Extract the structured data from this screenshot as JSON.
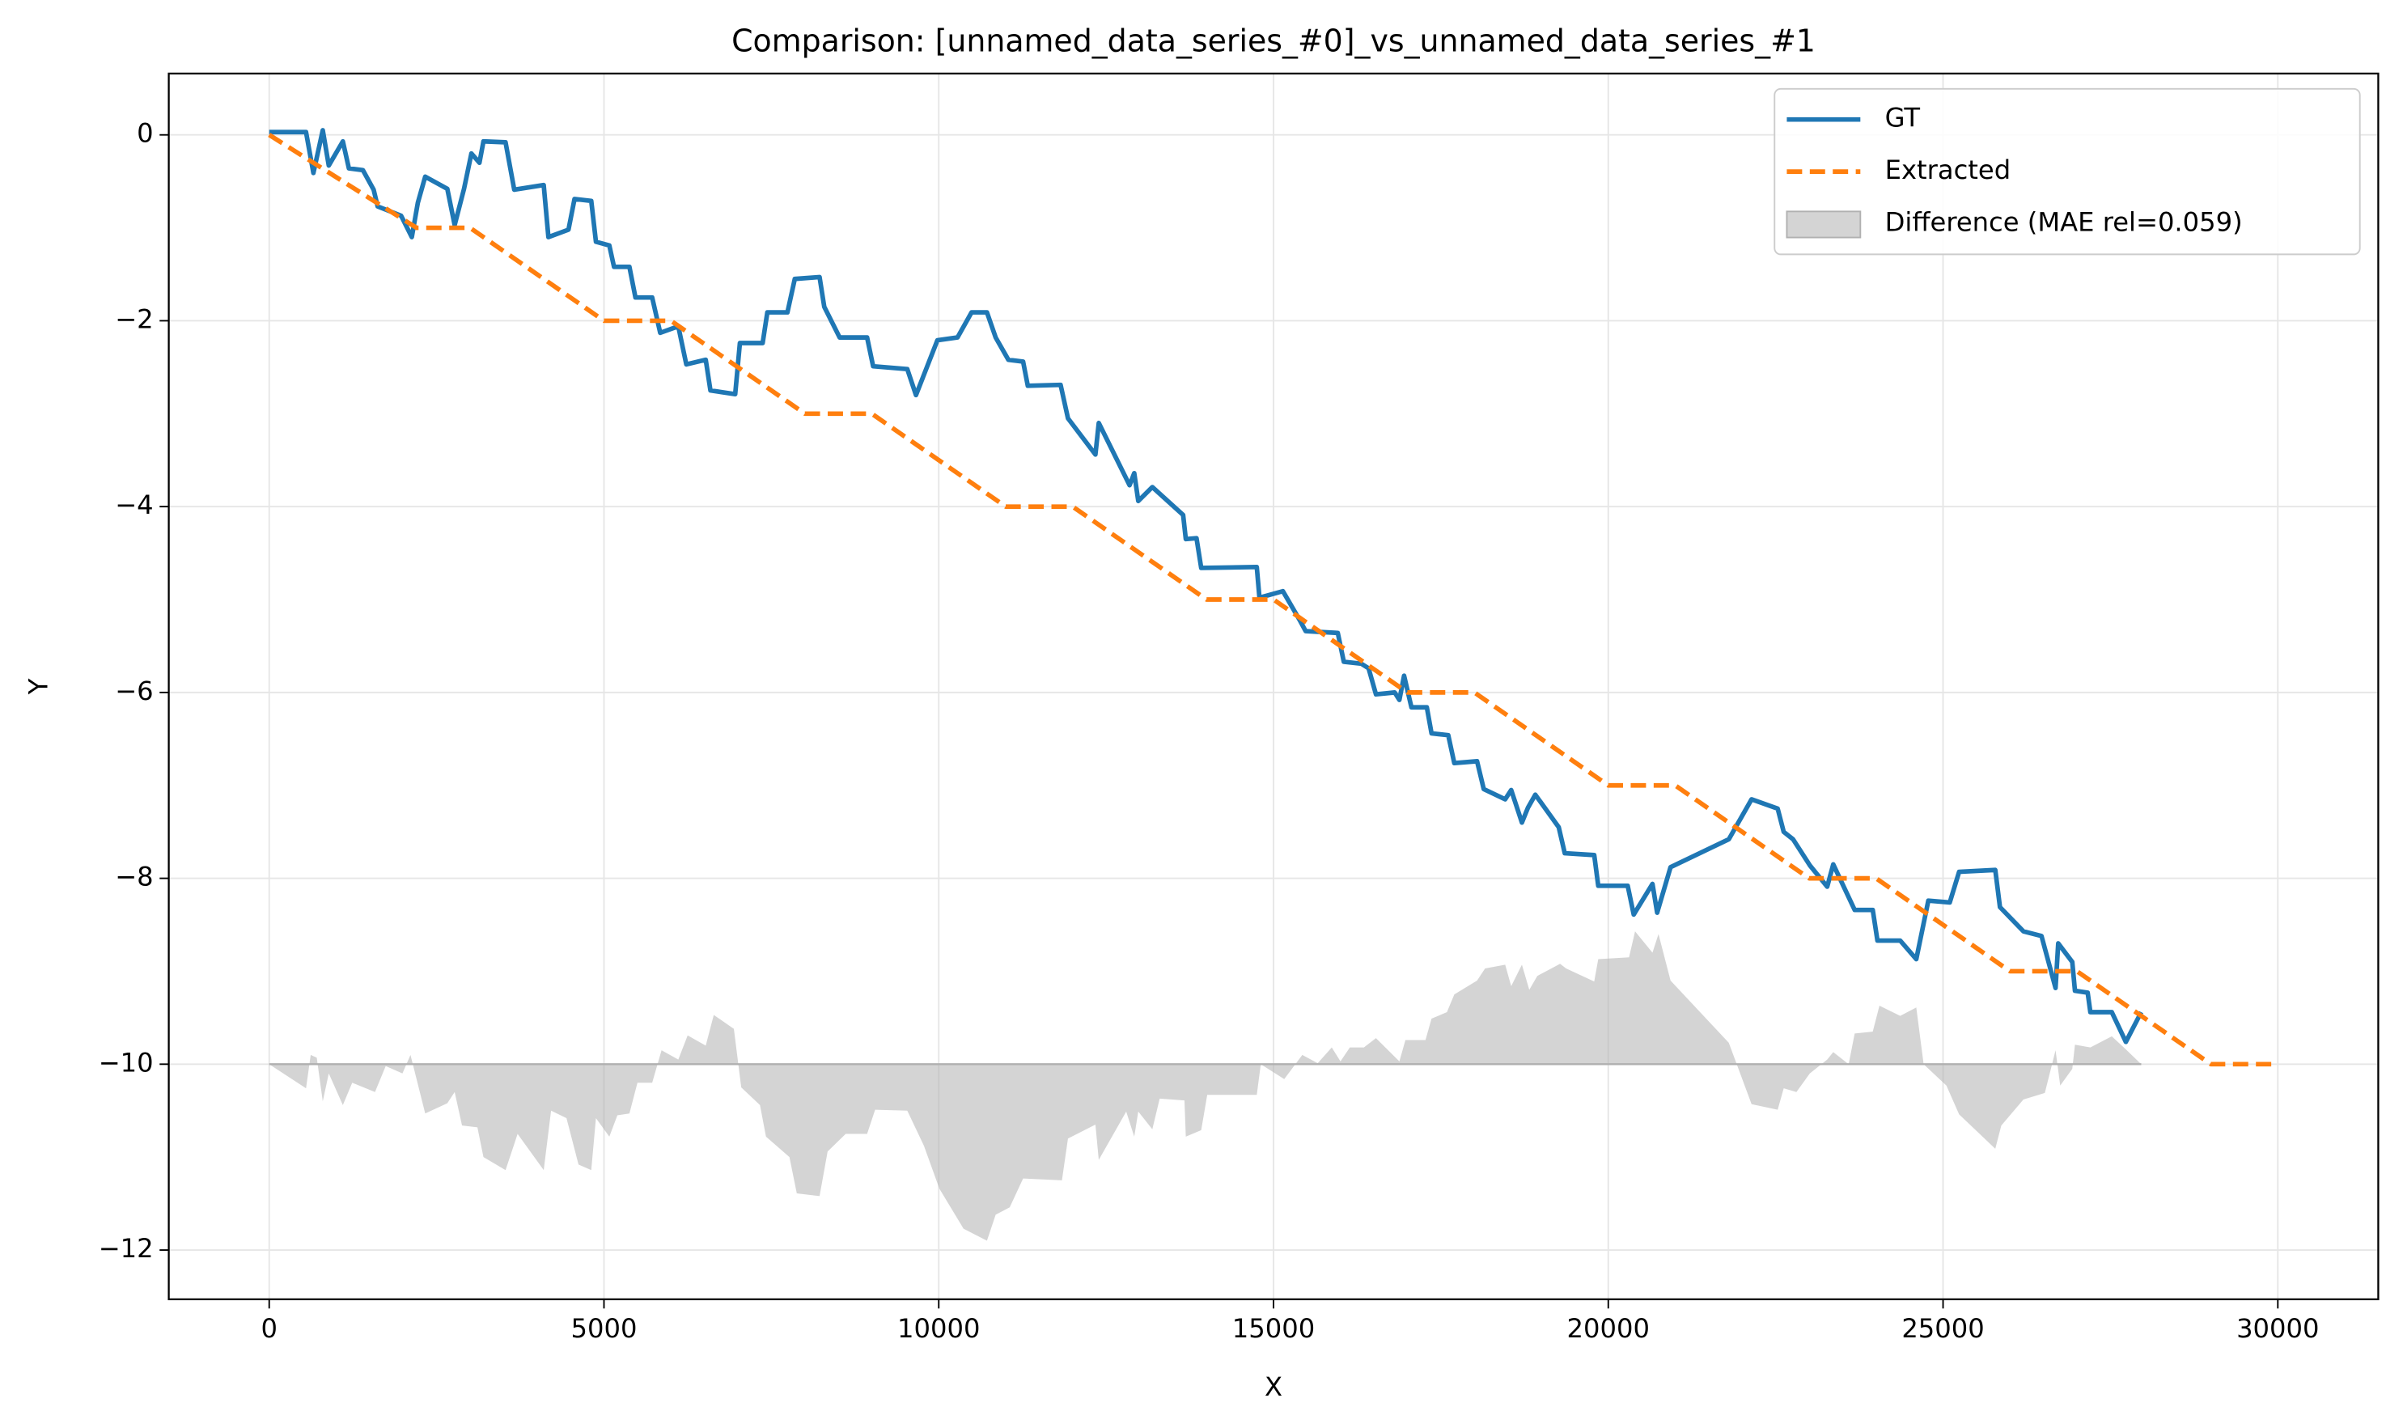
{
  "chart_data": {
    "type": "line",
    "title": "Comparison: [unnamed_data_series_#0]_vs_unnamed_data_series_#1",
    "x_label": "X",
    "y_label": "Y",
    "xlim": [
      -1500,
      31500
    ],
    "ylim": [
      -12.53,
      0.66
    ],
    "xticks": [
      0,
      5000,
      10000,
      15000,
      20000,
      25000,
      30000
    ],
    "yticks": [
      {
        "value": 0,
        "label": "0"
      },
      {
        "value": -2,
        "label": "−2"
      },
      {
        "value": -4,
        "label": "−4"
      },
      {
        "value": -6,
        "label": "−6"
      },
      {
        "value": -8,
        "label": "−8"
      },
      {
        "value": -10,
        "label": "−10"
      },
      {
        "value": -12,
        "label": "−12"
      }
    ],
    "grid": true,
    "legend": "upper right",
    "series": [
      {
        "name": "GT",
        "color": "#1f77b4",
        "style": "solid",
        "x": [
          0,
          550,
          660,
          800,
          890,
          1100,
          1190,
          1400,
          1560,
          1620,
          1970,
          2130,
          2220,
          2330,
          2660,
          2770,
          2910,
          3020,
          3140,
          3200,
          3530,
          3660,
          4100,
          4170,
          4470,
          4560,
          4810,
          4880,
          5080,
          5150,
          5380,
          5470,
          5720,
          5840,
          6110,
          6230,
          6520,
          6590,
          6960,
          7030,
          7370,
          7440,
          7740,
          7850,
          8220,
          8290,
          8520,
          8930,
          9020,
          9530,
          9660,
          9980,
          10280,
          10490,
          10720,
          10850,
          11040,
          11260,
          11330,
          11820,
          11930,
          12340,
          12390,
          12850,
          12920,
          12980,
          13190,
          13650,
          13690,
          13850,
          13920,
          14750,
          14790,
          15140,
          15390,
          15480,
          15960,
          16050,
          16310,
          16420,
          16530,
          16810,
          16880,
          16950,
          17060,
          17290,
          17360,
          17610,
          17700,
          18040,
          18140,
          18460,
          18550,
          18710,
          18800,
          18910,
          19260,
          19350,
          19790,
          19850,
          20290,
          20380,
          20660,
          20730,
          20930,
          21800,
          22140,
          22530,
          22620,
          22760,
          23010,
          23270,
          23360,
          23680,
          23950,
          24020,
          24360,
          24600,
          24780,
          25100,
          25240,
          25780,
          25850,
          26200,
          26470,
          26680,
          26720,
          26930,
          26970,
          27160,
          27200,
          27520,
          27730,
          27960
        ],
        "values": [
          0.03,
          0.03,
          -0.41,
          0.05,
          -0.33,
          -0.07,
          -0.36,
          -0.38,
          -0.59,
          -0.77,
          -0.87,
          -1.1,
          -0.73,
          -0.45,
          -0.58,
          -0.97,
          -0.58,
          -0.2,
          -0.3,
          -0.07,
          -0.08,
          -0.59,
          -0.54,
          -1.1,
          -1.02,
          -0.69,
          -0.71,
          -1.15,
          -1.19,
          -1.42,
          -1.42,
          -1.75,
          -1.75,
          -2.13,
          -2.06,
          -2.47,
          -2.42,
          -2.75,
          -2.79,
          -2.24,
          -2.24,
          -1.91,
          -1.91,
          -1.55,
          -1.53,
          -1.85,
          -2.18,
          -2.18,
          -2.49,
          -2.52,
          -2.8,
          -2.21,
          -2.18,
          -1.91,
          -1.91,
          -2.18,
          -2.42,
          -2.44,
          -2.7,
          -2.69,
          -3.05,
          -3.44,
          -3.1,
          -3.77,
          -3.64,
          -3.94,
          -3.79,
          -4.09,
          -4.35,
          -4.34,
          -4.66,
          -4.65,
          -4.98,
          -4.91,
          -5.22,
          -5.34,
          -5.36,
          -5.67,
          -5.69,
          -5.74,
          -6.02,
          -6.0,
          -6.08,
          -5.82,
          -6.16,
          -6.16,
          -6.44,
          -6.46,
          -6.76,
          -6.74,
          -7.04,
          -7.15,
          -7.05,
          -7.4,
          -7.24,
          -7.1,
          -7.45,
          -7.73,
          -7.75,
          -8.08,
          -8.08,
          -8.39,
          -8.06,
          -8.37,
          -7.88,
          -7.58,
          -7.15,
          -7.25,
          -7.5,
          -7.58,
          -7.86,
          -8.09,
          -7.85,
          -8.34,
          -8.34,
          -8.67,
          -8.67,
          -8.87,
          -8.24,
          -8.26,
          -7.93,
          -7.91,
          -8.31,
          -8.57,
          -8.62,
          -9.18,
          -8.7,
          -8.9,
          -9.21,
          -9.23,
          -9.44,
          -9.44,
          -9.76,
          -9.44
        ]
      },
      {
        "name": "Extracted",
        "color": "#ff7f0e",
        "style": "dashed",
        "x": [
          0,
          2200,
          3000,
          5000,
          6000,
          8000,
          9000,
          11000,
          12000,
          14000,
          15000,
          17000,
          18000,
          20000,
          21000,
          23000,
          24000,
          26000,
          27000,
          29000,
          30000
        ],
        "values": [
          0,
          -1,
          -1,
          -2,
          -2,
          -3,
          -3,
          -4,
          -4,
          -5,
          -5,
          -6,
          -6,
          -7,
          -7,
          -8,
          -8,
          -9,
          -9,
          -10,
          -10
        ]
      },
      {
        "name": "Difference (MAE rel=0.059)",
        "color": "#b0b0b0",
        "style": "area",
        "baseline": -10,
        "x": [
          0,
          550,
          620,
          710,
          800,
          890,
          1100,
          1240,
          1580,
          1740,
          1990,
          2110,
          2330,
          2660,
          2770,
          2880,
          3110,
          3200,
          3530,
          3710,
          4100,
          4210,
          4440,
          4620,
          4810,
          4880,
          5080,
          5200,
          5380,
          5500,
          5720,
          5860,
          6110,
          6250,
          6520,
          6640,
          6940,
          7050,
          7330,
          7420,
          7770,
          7880,
          8220,
          8340,
          8610,
          8930,
          9050,
          9530,
          9780,
          10010,
          10370,
          10720,
          10850,
          11060,
          11260,
          11840,
          11930,
          12340,
          12390,
          12800,
          12920,
          12980,
          13190,
          13300,
          13670,
          13690,
          13920,
          14010,
          14750,
          14810,
          15160,
          15430,
          15660,
          15870,
          16000,
          16140,
          16350,
          16530,
          16880,
          16970,
          17270,
          17360,
          17590,
          17700,
          18040,
          18160,
          18460,
          18550,
          18710,
          18820,
          18940,
          19280,
          19370,
          19790,
          19850,
          20310,
          20400,
          20660,
          20750,
          20930,
          21800,
          22140,
          22530,
          22620,
          22810,
          23010,
          23270,
          23360,
          23590,
          23680,
          23950,
          24050,
          24360,
          24600,
          24710,
          25050,
          25240,
          25780,
          25870,
          26200,
          26520,
          26680,
          26750,
          26930,
          26970,
          27200,
          27520,
          27730,
          27960
        ],
        "values": [
          -10,
          -10.26,
          -9.9,
          -9.93,
          -10.4,
          -10.1,
          -10.44,
          -10.2,
          -10.3,
          -10.02,
          -10.1,
          -9.9,
          -10.53,
          -10.42,
          -10.3,
          -10.66,
          -10.68,
          -11.0,
          -11.14,
          -10.75,
          -11.14,
          -10.5,
          -10.58,
          -11.08,
          -11.14,
          -10.58,
          -10.78,
          -10.55,
          -10.53,
          -10.2,
          -10.2,
          -9.85,
          -9.95,
          -9.69,
          -9.8,
          -9.47,
          -9.62,
          -10.25,
          -10.44,
          -10.78,
          -11.0,
          -11.39,
          -11.42,
          -10.94,
          -10.75,
          -10.75,
          -10.49,
          -10.5,
          -10.88,
          -11.34,
          -11.77,
          -11.9,
          -11.62,
          -11.54,
          -11.23,
          -11.25,
          -10.8,
          -10.65,
          -11.03,
          -10.51,
          -10.78,
          -10.51,
          -10.7,
          -10.37,
          -10.39,
          -10.78,
          -10.71,
          -10.33,
          -10.33,
          -10.0,
          -10.16,
          -9.9,
          -9.99,
          -9.82,
          -9.97,
          -9.82,
          -9.82,
          -9.72,
          -9.97,
          -9.74,
          -9.74,
          -9.51,
          -9.44,
          -9.25,
          -9.1,
          -8.97,
          -8.93,
          -9.16,
          -8.93,
          -9.2,
          -9.05,
          -8.92,
          -8.97,
          -9.11,
          -8.87,
          -8.85,
          -8.57,
          -8.8,
          -8.6,
          -9.1,
          -9.77,
          -10.43,
          -10.49,
          -10.26,
          -10.3,
          -10.1,
          -9.95,
          -9.87,
          -10.0,
          -9.67,
          -9.65,
          -9.37,
          -9.48,
          -9.39,
          -10.0,
          -10.23,
          -10.54,
          -10.91,
          -10.66,
          -10.38,
          -10.31,
          -9.85,
          -10.23,
          -10.05,
          -9.79,
          -9.82,
          -9.7,
          -9.84,
          -10.0
        ]
      }
    ]
  }
}
